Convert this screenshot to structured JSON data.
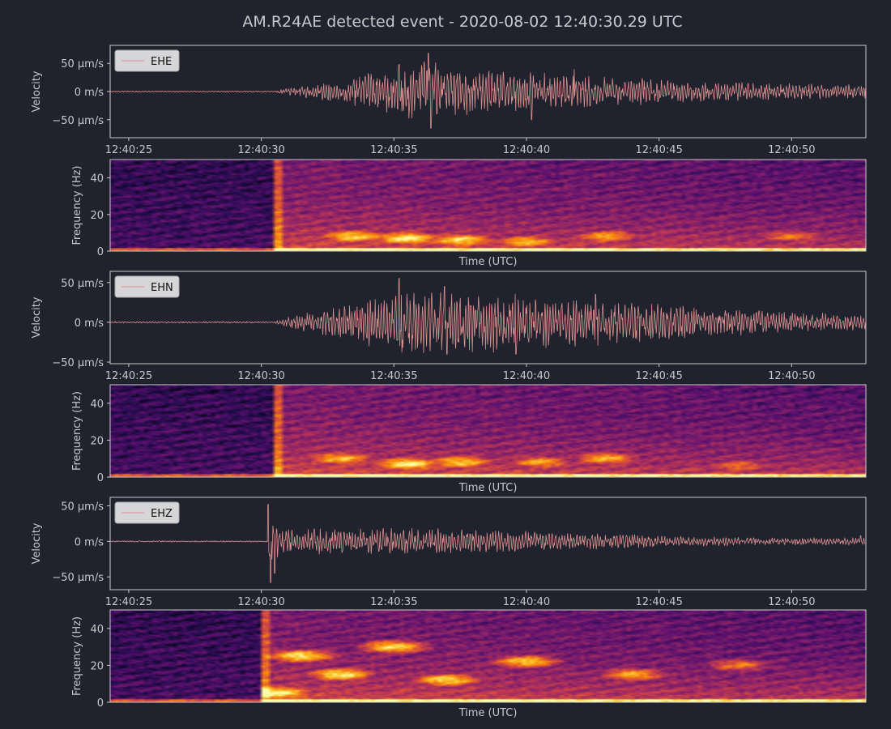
{
  "title": "AM.R24AE detected event - 2020-08-02 12:40:30.29 UTC",
  "colors": {
    "background": "#20232d",
    "text": "#c8c8cc",
    "trace": "#d98f8f",
    "legend_bg": "#d6d6d8",
    "colormap": "inferno"
  },
  "chart_data": [
    {
      "type": "line",
      "channel": "EHE",
      "ylabel": "Velocity",
      "legend": "EHE",
      "legend_position": "upper-left",
      "x_tick_labels": [
        "12:40:25",
        "12:40:30",
        "12:40:35",
        "12:40:40",
        "12:40:45",
        "12:40:50"
      ],
      "y_tick_labels": [
        "50 µm/s",
        "0 m/s",
        "−50 µm/s"
      ],
      "y_ticks": [
        50,
        0,
        -50
      ],
      "ylim": [
        -82,
        82
      ],
      "xlim_seconds": [
        24.3,
        52.8
      ],
      "onset_seconds": 30.5,
      "envelope": [
        {
          "t": 24.3,
          "amp": 1
        },
        {
          "t": 30.5,
          "amp": 1
        },
        {
          "t": 31,
          "amp": 7
        },
        {
          "t": 33,
          "amp": 22
        },
        {
          "t": 35,
          "amp": 45
        },
        {
          "t": 36.2,
          "amp": 62
        },
        {
          "t": 38,
          "amp": 40
        },
        {
          "t": 40,
          "amp": 36
        },
        {
          "t": 43,
          "amp": 28
        },
        {
          "t": 47,
          "amp": 18
        },
        {
          "t": 52.8,
          "amp": 12
        }
      ],
      "peaks": [
        {
          "t": 35.2,
          "v": 48
        },
        {
          "t": 35.3,
          "v": -35
        },
        {
          "t": 36.3,
          "v": 68
        },
        {
          "t": 36.4,
          "v": -65
        },
        {
          "t": 40.2,
          "v": -50
        },
        {
          "t": 41.8,
          "v": 40
        }
      ]
    },
    {
      "type": "heatmap",
      "channel": "EHE",
      "ylabel": "Frequency (Hz)",
      "xlabel": "Time (UTC)",
      "y_tick_labels": [
        "0",
        "20",
        "40"
      ],
      "y_ticks": [
        0,
        20,
        40
      ],
      "ylim": [
        0,
        50
      ],
      "xlim_seconds": [
        24.3,
        52.8
      ],
      "onset_seconds": 30.5,
      "pre_event_level": 0.16,
      "bright_bands": [
        {
          "t": 33.5,
          "f": 8,
          "level": 0.92
        },
        {
          "t": 35.5,
          "f": 7,
          "level": 0.98
        },
        {
          "t": 37.5,
          "f": 6,
          "level": 0.92
        },
        {
          "t": 40,
          "f": 5,
          "level": 0.85
        },
        {
          "t": 43,
          "f": 8,
          "level": 0.8
        },
        {
          "t": 50,
          "f": 8,
          "level": 0.7
        }
      ]
    },
    {
      "type": "line",
      "channel": "EHN",
      "ylabel": "Velocity",
      "legend": "EHN",
      "legend_position": "upper-left",
      "x_tick_labels": [
        "12:40:25",
        "12:40:30",
        "12:40:35",
        "12:40:40",
        "12:40:45",
        "12:40:50"
      ],
      "y_tick_labels": [
        "50 µm/s",
        "0 m/s",
        "−50 µm/s"
      ],
      "y_ticks": [
        50,
        0,
        -50
      ],
      "ylim": [
        -52,
        64
      ],
      "xlim_seconds": [
        24.3,
        52.8
      ],
      "onset_seconds": 30.5,
      "envelope": [
        {
          "t": 24.3,
          "amp": 1
        },
        {
          "t": 30.5,
          "amp": 1
        },
        {
          "t": 31,
          "amp": 9
        },
        {
          "t": 33,
          "amp": 20
        },
        {
          "t": 35,
          "amp": 40
        },
        {
          "t": 37,
          "amp": 42
        },
        {
          "t": 40,
          "amp": 36
        },
        {
          "t": 43,
          "amp": 30
        },
        {
          "t": 47,
          "amp": 18
        },
        {
          "t": 52.8,
          "amp": 10
        }
      ],
      "peaks": [
        {
          "t": 35.2,
          "v": 55
        },
        {
          "t": 35.3,
          "v": -38
        },
        {
          "t": 36.9,
          "v": 45
        },
        {
          "t": 37.0,
          "v": -40
        },
        {
          "t": 39.6,
          "v": -40
        },
        {
          "t": 42.6,
          "v": 35
        }
      ]
    },
    {
      "type": "heatmap",
      "channel": "EHN",
      "ylabel": "Frequency (Hz)",
      "xlabel": "Time (UTC)",
      "y_tick_labels": [
        "0",
        "20",
        "40"
      ],
      "y_ticks": [
        0,
        20,
        40
      ],
      "ylim": [
        0,
        50
      ],
      "xlim_seconds": [
        24.3,
        52.8
      ],
      "onset_seconds": 30.5,
      "pre_event_level": 0.16,
      "bright_bands": [
        {
          "t": 33,
          "f": 10,
          "level": 0.85
        },
        {
          "t": 35.5,
          "f": 7,
          "level": 0.98
        },
        {
          "t": 37.5,
          "f": 8,
          "level": 0.88
        },
        {
          "t": 40.5,
          "f": 8,
          "level": 0.8
        },
        {
          "t": 43,
          "f": 10,
          "level": 0.82
        },
        {
          "t": 48,
          "f": 6,
          "level": 0.7
        }
      ]
    },
    {
      "type": "line",
      "channel": "EHZ",
      "ylabel": "Velocity",
      "legend": "EHZ",
      "legend_position": "upper-left",
      "x_tick_labels": [
        "12:40:25",
        "12:40:30",
        "12:40:35",
        "12:40:40",
        "12:40:45",
        "12:40:50"
      ],
      "y_tick_labels": [
        "50 µm/s",
        "0 m/s",
        "−50 µm/s"
      ],
      "y_ticks": [
        50,
        0,
        -50
      ],
      "ylim": [
        -68,
        62
      ],
      "xlim_seconds": [
        24.3,
        52.8
      ],
      "onset_seconds": 30.2,
      "envelope": [
        {
          "t": 24.3,
          "amp": 1
        },
        {
          "t": 30.2,
          "amp": 1
        },
        {
          "t": 30.3,
          "amp": 30
        },
        {
          "t": 31,
          "amp": 20
        },
        {
          "t": 33,
          "amp": 18
        },
        {
          "t": 36,
          "amp": 20
        },
        {
          "t": 40,
          "amp": 15
        },
        {
          "t": 44,
          "amp": 10
        },
        {
          "t": 48,
          "amp": 6
        },
        {
          "t": 52.8,
          "amp": 5
        }
      ],
      "peaks": [
        {
          "t": 30.25,
          "v": 52
        },
        {
          "t": 30.35,
          "v": -58
        },
        {
          "t": 30.5,
          "v": -45
        },
        {
          "t": 52.6,
          "v": 8
        }
      ]
    },
    {
      "type": "heatmap",
      "channel": "EHZ",
      "ylabel": "Frequency (Hz)",
      "xlabel": "Time (UTC)",
      "y_tick_labels": [
        "0",
        "20",
        "40"
      ],
      "y_ticks": [
        0,
        20,
        40
      ],
      "ylim": [
        0,
        50
      ],
      "xlim_seconds": [
        24.3,
        52.8
      ],
      "onset_seconds": 30.0,
      "pre_event_level": 0.16,
      "bright_bands": [
        {
          "t": 30.6,
          "f": 5,
          "level": 1.0
        },
        {
          "t": 31.5,
          "f": 25,
          "level": 0.95
        },
        {
          "t": 33,
          "f": 15,
          "level": 0.95
        },
        {
          "t": 35,
          "f": 30,
          "level": 0.92
        },
        {
          "t": 37,
          "f": 12,
          "level": 0.92
        },
        {
          "t": 40,
          "f": 22,
          "level": 0.88
        },
        {
          "t": 44,
          "f": 15,
          "level": 0.82
        },
        {
          "t": 48,
          "f": 20,
          "level": 0.7
        }
      ]
    }
  ]
}
